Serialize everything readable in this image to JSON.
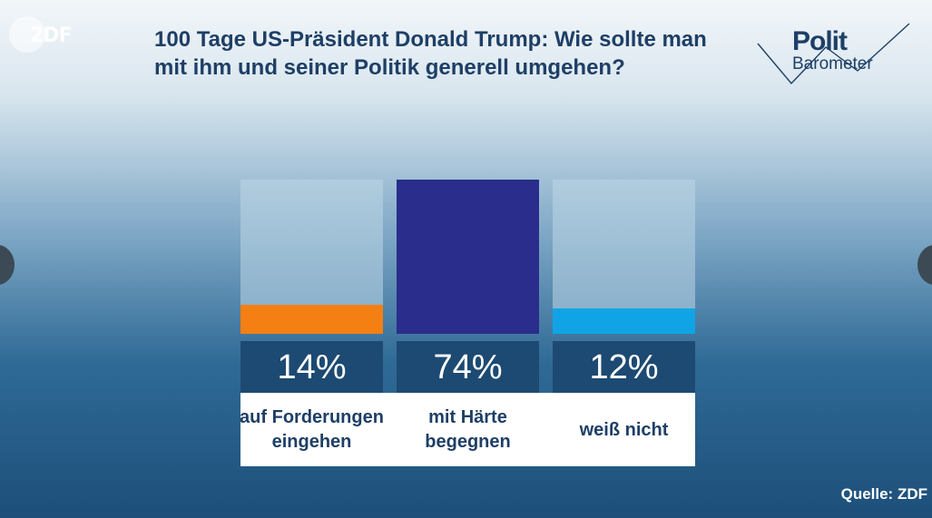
{
  "broadcaster": {
    "logo_text": "2DF"
  },
  "title": "100 Tage US-Präsident Donald Trump: Wie sollte man mit ihm und seiner Politik generell umgehen?",
  "brand": {
    "line1": "Polit",
    "line2": "Barometer"
  },
  "source": "Quelle: ZDF",
  "colors": {
    "track": "#bed7e6",
    "value_box": "#1d4a72",
    "text": "#1e3f66"
  },
  "chart_data": {
    "type": "bar",
    "title": "100 Tage US-Präsident Donald Trump: Wie sollte man mit ihm und seiner Politik generell umgehen?",
    "categories": [
      "auf Forderungen eingehen",
      "mit Härte begegnen",
      "weiß nicht"
    ],
    "values": [
      14,
      74,
      12
    ],
    "value_labels": [
      "14%",
      "74%",
      "12%"
    ],
    "colors": [
      "#f47f12",
      "#2a2d8c",
      "#10a4e6"
    ],
    "ylim": [
      0,
      74
    ],
    "ylabel": "",
    "xlabel": "",
    "grid": false
  }
}
